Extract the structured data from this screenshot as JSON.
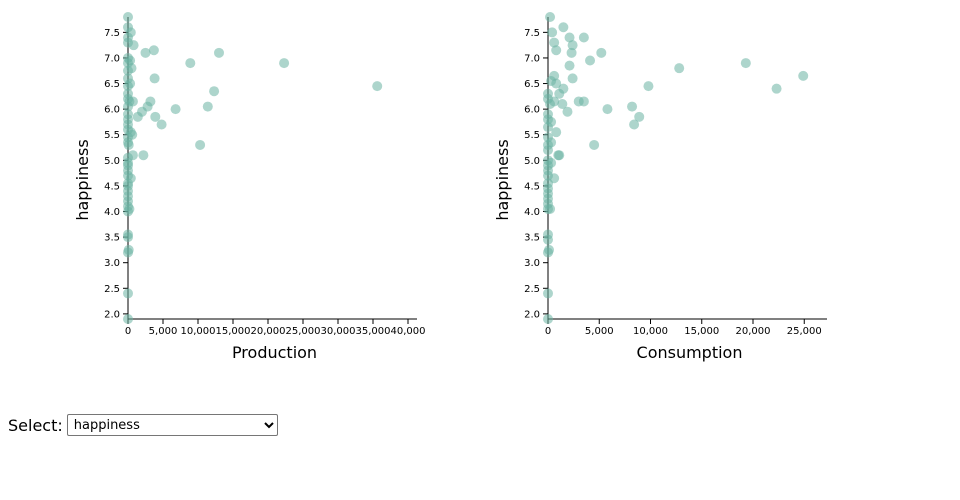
{
  "controls": {
    "select_label": "Select:",
    "selected_value": "happiness",
    "options": [
      "happiness"
    ]
  },
  "chart_data": [
    {
      "type": "scatter",
      "xlabel": "Production",
      "ylabel": "happiness",
      "color": "#69b3a2",
      "xlim": [
        0,
        40000
      ],
      "ylim": [
        1.9,
        7.8
      ],
      "xticks": [
        0,
        5000,
        10000,
        15000,
        20000,
        25000,
        30000,
        35000,
        40000
      ],
      "xtick_labels": [
        "0",
        "5,000",
        "10,000",
        "15,000",
        "20,000",
        "25,000",
        "30,000",
        "35,000",
        "40,000"
      ],
      "yticks": [
        2.0,
        2.5,
        3.0,
        3.5,
        4.0,
        4.5,
        5.0,
        5.5,
        6.0,
        6.5,
        7.0,
        7.5
      ],
      "ytick_labels": [
        "2.0",
        "2.5",
        "3.0",
        "3.5",
        "4.0",
        "4.5",
        "5.0",
        "5.5",
        "6.0",
        "6.5",
        "7.0",
        "7.5"
      ],
      "points": [
        [
          0,
          7.8
        ],
        [
          0,
          7.6
        ],
        [
          0,
          7.4
        ],
        [
          0,
          7.3
        ],
        [
          400,
          7.5
        ],
        [
          800,
          7.25
        ],
        [
          2500,
          7.1
        ],
        [
          3700,
          7.15
        ],
        [
          13000,
          7.1
        ],
        [
          8900,
          6.9
        ],
        [
          22300,
          6.9
        ],
        [
          35600,
          6.45
        ],
        [
          0,
          7.0
        ],
        [
          0,
          6.9
        ],
        [
          0,
          6.75
        ],
        [
          0,
          6.6
        ],
        [
          300,
          6.95
        ],
        [
          500,
          6.8
        ],
        [
          300,
          6.5
        ],
        [
          0,
          6.45
        ],
        [
          3800,
          6.6
        ],
        [
          12300,
          6.35
        ],
        [
          0,
          6.3
        ],
        [
          0,
          6.2
        ],
        [
          200,
          6.15
        ],
        [
          700,
          6.15
        ],
        [
          0,
          6.05
        ],
        [
          3200,
          6.15
        ],
        [
          2800,
          6.05
        ],
        [
          6800,
          6.0
        ],
        [
          11400,
          6.05
        ],
        [
          2000,
          5.95
        ],
        [
          1400,
          5.85
        ],
        [
          3900,
          5.85
        ],
        [
          4800,
          5.7
        ],
        [
          0,
          5.9
        ],
        [
          0,
          5.8
        ],
        [
          0,
          5.7
        ],
        [
          0,
          5.6
        ],
        [
          400,
          5.55
        ],
        [
          600,
          5.5
        ],
        [
          0,
          5.45
        ],
        [
          0,
          5.35
        ],
        [
          100,
          5.3
        ],
        [
          10300,
          5.3
        ],
        [
          2200,
          5.1
        ],
        [
          700,
          5.1
        ],
        [
          0,
          5.05
        ],
        [
          0,
          4.95
        ],
        [
          0,
          4.9
        ],
        [
          0,
          4.8
        ],
        [
          0,
          4.7
        ],
        [
          400,
          4.65
        ],
        [
          0,
          4.55
        ],
        [
          0,
          4.5
        ],
        [
          0,
          4.4
        ],
        [
          0,
          4.3
        ],
        [
          0,
          4.2
        ],
        [
          0,
          4.1
        ],
        [
          200,
          4.05
        ],
        [
          0,
          4.0
        ],
        [
          0,
          3.55
        ],
        [
          0,
          3.5
        ],
        [
          100,
          3.25
        ],
        [
          0,
          3.2
        ],
        [
          0,
          2.4
        ],
        [
          0,
          1.9
        ]
      ]
    },
    {
      "type": "scatter",
      "xlabel": "Consumption",
      "ylabel": "happiness",
      "color": "#69b3a2",
      "xlim": [
        0,
        28000
      ],
      "ylim": [
        1.9,
        7.8
      ],
      "xticks": [
        0,
        5000,
        10000,
        15000,
        20000,
        25000
      ],
      "xtick_labels": [
        "0",
        "5,000",
        "10,000",
        "15,000",
        "20,000",
        "25,000"
      ],
      "yticks": [
        2.0,
        2.5,
        3.0,
        3.5,
        4.0,
        4.5,
        5.0,
        5.5,
        6.0,
        6.5,
        7.0,
        7.5
      ],
      "ytick_labels": [
        "2.0",
        "2.5",
        "3.0",
        "3.5",
        "4.0",
        "4.5",
        "5.0",
        "5.5",
        "6.0",
        "6.5",
        "7.0",
        "7.5"
      ],
      "points": [
        [
          200,
          7.8
        ],
        [
          1500,
          7.6
        ],
        [
          3500,
          7.4
        ],
        [
          2100,
          7.4
        ],
        [
          400,
          7.5
        ],
        [
          600,
          7.3
        ],
        [
          800,
          7.15
        ],
        [
          2400,
          7.25
        ],
        [
          2300,
          7.1
        ],
        [
          5200,
          7.1
        ],
        [
          4100,
          6.95
        ],
        [
          2100,
          6.85
        ],
        [
          12800,
          6.8
        ],
        [
          19300,
          6.9
        ],
        [
          24900,
          6.65
        ],
        [
          22300,
          6.4
        ],
        [
          9800,
          6.45
        ],
        [
          1500,
          6.4
        ],
        [
          2400,
          6.6
        ],
        [
          600,
          6.65
        ],
        [
          800,
          6.5
        ],
        [
          300,
          6.55
        ],
        [
          1100,
          6.3
        ],
        [
          0,
          6.3
        ],
        [
          0,
          6.2
        ],
        [
          200,
          6.1
        ],
        [
          600,
          6.15
        ],
        [
          1400,
          6.1
        ],
        [
          3000,
          6.15
        ],
        [
          3500,
          6.15
        ],
        [
          5800,
          6.0
        ],
        [
          8200,
          6.05
        ],
        [
          8900,
          5.85
        ],
        [
          8400,
          5.7
        ],
        [
          1900,
          5.95
        ],
        [
          0,
          5.9
        ],
        [
          0,
          5.8
        ],
        [
          300,
          5.75
        ],
        [
          0,
          5.65
        ],
        [
          800,
          5.55
        ],
        [
          0,
          5.45
        ],
        [
          300,
          5.35
        ],
        [
          0,
          5.3
        ],
        [
          4500,
          5.3
        ],
        [
          0,
          5.2
        ],
        [
          1000,
          5.1
        ],
        [
          1100,
          5.1
        ],
        [
          0,
          5.0
        ],
        [
          0,
          4.9
        ],
        [
          300,
          4.95
        ],
        [
          0,
          4.8
        ],
        [
          0,
          4.7
        ],
        [
          600,
          4.65
        ],
        [
          0,
          4.55
        ],
        [
          0,
          4.45
        ],
        [
          0,
          4.35
        ],
        [
          0,
          4.25
        ],
        [
          0,
          4.15
        ],
        [
          0,
          4.05
        ],
        [
          200,
          4.05
        ],
        [
          0,
          3.55
        ],
        [
          0,
          3.45
        ],
        [
          100,
          3.25
        ],
        [
          0,
          3.2
        ],
        [
          0,
          2.4
        ],
        [
          0,
          1.9
        ]
      ]
    }
  ]
}
